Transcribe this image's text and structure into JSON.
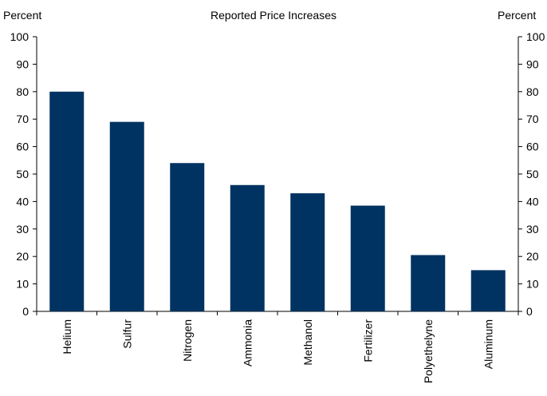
{
  "chart_data": {
    "type": "bar",
    "title": "Reported Price Increases",
    "ylabel_left": "Percent",
    "ylabel_right": "Percent",
    "categories": [
      "Helium",
      "Sulfur",
      "Nitrogen",
      "Ammonia",
      "Methanol",
      "Fertilizer",
      "Polyethelyne",
      "Aluminum"
    ],
    "values": [
      80,
      69,
      54,
      46,
      43,
      38.5,
      20.5,
      15
    ],
    "ylim": [
      0,
      100
    ],
    "yticks": [
      0,
      10,
      20,
      30,
      40,
      50,
      60,
      70,
      80,
      90,
      100
    ],
    "bar_color": "#003361",
    "grid": false,
    "legend": "none"
  }
}
